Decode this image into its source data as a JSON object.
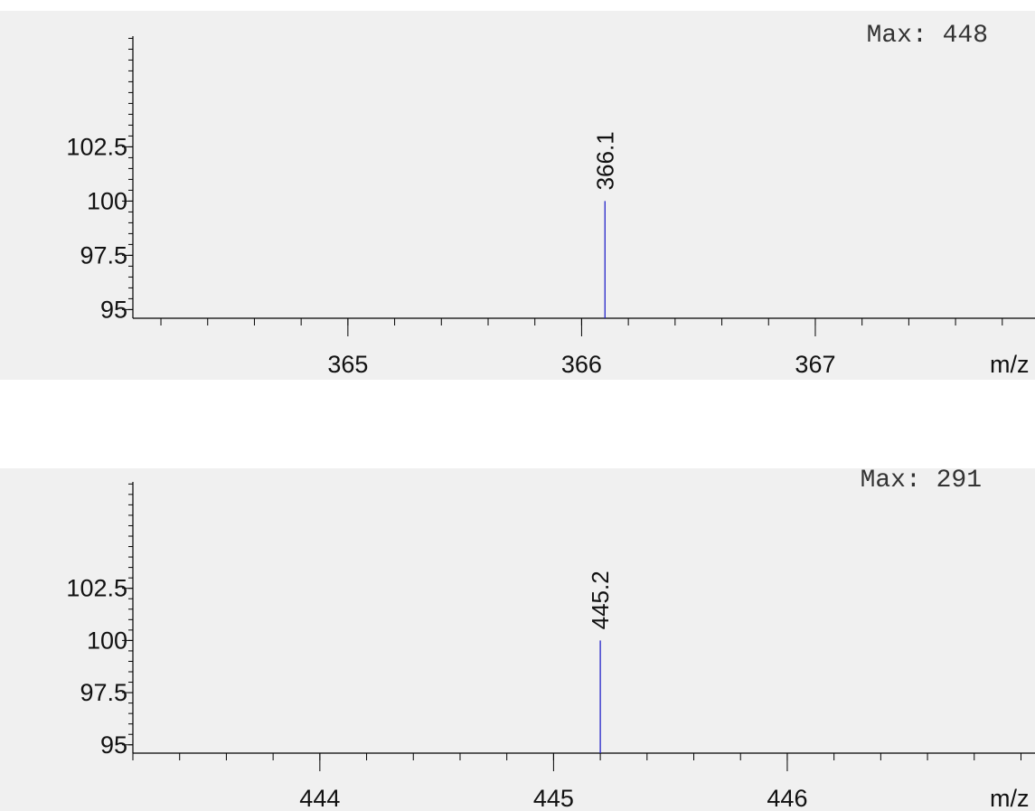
{
  "chart_data": [
    {
      "type": "bar",
      "xlabel": "m/z",
      "ylabel": "",
      "max_label": "Max: 448",
      "xlim": [
        364.08,
        367.94
      ],
      "ylim": [
        94.6,
        107.6
      ],
      "xticks": [
        365,
        366,
        367
      ],
      "xtick_labels": [
        "365",
        "366",
        "367"
      ],
      "x_minor_step": 0.2,
      "yticks": [
        95,
        97.5,
        100,
        102.5
      ],
      "ytick_labels": [
        "95",
        "97.5",
        "100",
        "102.5"
      ],
      "y_minor_step": 0.5,
      "line_color": "#2323c8",
      "grid": false,
      "series": [
        {
          "x": [
            366.1
          ],
          "values": [
            100
          ],
          "labels": [
            "366.1"
          ]
        }
      ]
    },
    {
      "type": "bar",
      "xlabel": "m/z",
      "ylabel": "",
      "max_label": "Max: 291",
      "xlim": [
        443.2,
        447.06
      ],
      "ylim": [
        94.6,
        107.6
      ],
      "xticks": [
        444,
        445,
        446
      ],
      "xtick_labels": [
        "444",
        "445",
        "446"
      ],
      "x_minor_step": 0.2,
      "yticks": [
        95,
        97.5,
        100,
        102.5
      ],
      "ytick_labels": [
        "95",
        "97.5",
        "100",
        "102.5"
      ],
      "y_minor_step": 0.5,
      "line_color": "#2323c8",
      "grid": false,
      "series": [
        {
          "x": [
            445.2
          ],
          "values": [
            100
          ],
          "labels": [
            "445.2"
          ]
        }
      ]
    }
  ]
}
